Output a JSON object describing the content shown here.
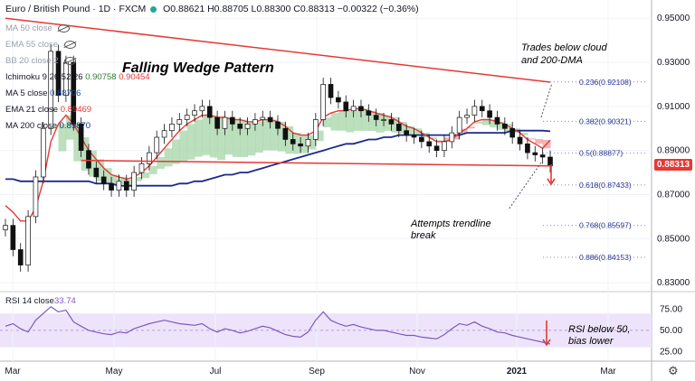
{
  "header": {
    "symbol": "Euro / British Pound · 1D · FXCM",
    "ohlc": "O0.88621 H0.88705 L0.88300 C0.88313 −0.00322 (−0.36%)"
  },
  "indicators": [
    {
      "label": "MA 50 close",
      "value": "",
      "visible": false
    },
    {
      "label": "EMA 55 close",
      "value": "",
      "visible": false
    },
    {
      "label": "BB 20 close 2",
      "value": "",
      "visible": false
    },
    {
      "label": "Ichimoku 9 26 52 26",
      "value": "0.90758",
      "value2": "0.90454",
      "visible": true
    },
    {
      "label": "MA 5 close",
      "value": "0.88706",
      "visible": true,
      "color": "#1e4fa8"
    },
    {
      "label": "EMA 21 close",
      "value": "0.89469",
      "visible": true,
      "color": "#e53935"
    },
    {
      "label": "MA 200 close",
      "value": "0.89870",
      "visible": true,
      "color": "#0d2a6b"
    }
  ],
  "colors": {
    "up": "#26a69a",
    "down": "#ef5350",
    "candle": "#111111",
    "ema21": "#e53935",
    "ma200": "#1a2a8c",
    "trend": "#e53935",
    "rsi": "#7e57c2",
    "rsi_band": "#ede4fb",
    "cloud_bull": "#a5d6a7",
    "cloud_bear": "#ef9a9a"
  },
  "annotations": {
    "title": "Falling Wedge Pattern",
    "cloud_note": "Trades below cloud and 200-DMA",
    "trend_note": "Attempts trendline break",
    "rsi_note": "RSI below 50, bias lower"
  },
  "current_price": "0.88313",
  "chart_data": [
    {
      "type": "candlestick",
      "title": "Euro / British Pound · 1D · FXCM",
      "x_tick_labels": [
        "Mar",
        "May",
        "Jul",
        "Sep",
        "Nov",
        "2021",
        "Mar"
      ],
      "y_tick_labels": [
        "0.95000",
        "0.93000",
        "0.91000",
        "0.89000",
        "0.87000",
        "0.85000",
        "0.83000"
      ],
      "ylim": [
        0.828,
        0.955
      ],
      "series": [
        {
          "name": "Close",
          "values": [
            0.856,
            0.845,
            0.838,
            0.86,
            0.878,
            0.9,
            0.935,
            0.915,
            0.93,
            0.902,
            0.89,
            0.882,
            0.878,
            0.875,
            0.872,
            0.876,
            0.872,
            0.88,
            0.884,
            0.889,
            0.896,
            0.899,
            0.902,
            0.904,
            0.906,
            0.908,
            0.91,
            0.905,
            0.9,
            0.905,
            0.902,
            0.9,
            0.902,
            0.904,
            0.905,
            0.903,
            0.9,
            0.895,
            0.893,
            0.892,
            0.895,
            0.904,
            0.92,
            0.914,
            0.912,
            0.908,
            0.91,
            0.908,
            0.906,
            0.904,
            0.904,
            0.902,
            0.899,
            0.897,
            0.896,
            0.894,
            0.892,
            0.89,
            0.894,
            0.898,
            0.905,
            0.906,
            0.91,
            0.908,
            0.905,
            0.902,
            0.9,
            0.896,
            0.893,
            0.889,
            0.888,
            0.887,
            0.883
          ]
        },
        {
          "name": "EMA 21",
          "values": [
            0.865,
            0.862,
            0.858,
            0.858,
            0.864,
            0.876,
            0.894,
            0.902,
            0.906,
            0.902,
            0.896,
            0.89,
            0.886,
            0.882,
            0.879,
            0.878,
            0.877,
            0.878,
            0.88,
            0.883,
            0.887,
            0.891,
            0.895,
            0.899,
            0.902,
            0.904,
            0.906,
            0.906,
            0.905,
            0.905,
            0.904,
            0.904,
            0.903,
            0.903,
            0.904,
            0.904,
            0.903,
            0.901,
            0.898,
            0.897,
            0.897,
            0.899,
            0.905,
            0.907,
            0.908,
            0.908,
            0.909,
            0.909,
            0.908,
            0.907,
            0.906,
            0.905,
            0.903,
            0.901,
            0.9,
            0.898,
            0.896,
            0.894,
            0.894,
            0.895,
            0.898,
            0.9,
            0.903,
            0.904,
            0.904,
            0.903,
            0.902,
            0.9,
            0.898,
            0.895,
            0.893,
            0.891,
            0.8947
          ]
        },
        {
          "name": "MA 200",
          "values": [
            0.877,
            0.877,
            0.876,
            0.876,
            0.876,
            0.876,
            0.876,
            0.876,
            0.876,
            0.876,
            0.876,
            0.876,
            0.875,
            0.875,
            0.875,
            0.874,
            0.874,
            0.874,
            0.874,
            0.874,
            0.874,
            0.874,
            0.874,
            0.875,
            0.875,
            0.876,
            0.876,
            0.877,
            0.878,
            0.879,
            0.879,
            0.88,
            0.88,
            0.881,
            0.882,
            0.883,
            0.884,
            0.885,
            0.886,
            0.887,
            0.888,
            0.889,
            0.89,
            0.891,
            0.892,
            0.893,
            0.893,
            0.894,
            0.895,
            0.895,
            0.896,
            0.896,
            0.897,
            0.897,
            0.897,
            0.897,
            0.897,
            0.897,
            0.897,
            0.897,
            0.897,
            0.898,
            0.898,
            0.898,
            0.898,
            0.898,
            0.898,
            0.899,
            0.899,
            0.899,
            0.899,
            0.899,
            0.8987
          ]
        }
      ],
      "fib_levels": [
        {
          "label": "0.236(0.92108)",
          "price": 0.92108
        },
        {
          "label": "0.382(0.90321)",
          "price": 0.90321
        },
        {
          "label": "0.5(0.88877)",
          "price": 0.88877
        },
        {
          "label": "0.618(0.87433)",
          "price": 0.87433
        },
        {
          "label": "0.768(0.85597)",
          "price": 0.85597
        },
        {
          "label": "0.886(0.84153)",
          "price": 0.84153
        }
      ],
      "trendlines": [
        {
          "name": "upper wedge",
          "from": [
            0,
            0.95
          ],
          "to": [
            72,
            0.921
          ]
        },
        {
          "name": "support",
          "from": [
            10,
            0.8855
          ],
          "to": [
            72,
            0.883
          ]
        }
      ]
    },
    {
      "type": "line",
      "title": "RSI 14 close",
      "value_label": "33.74",
      "y_tick_labels": [
        "75.00",
        "50.00",
        "25.00"
      ],
      "ylim": [
        20,
        82
      ],
      "band": [
        30,
        70
      ],
      "values": [
        55,
        58,
        52,
        48,
        62,
        70,
        78,
        72,
        74,
        60,
        55,
        50,
        48,
        46,
        45,
        48,
        47,
        52,
        55,
        58,
        60,
        62,
        60,
        58,
        57,
        56,
        58,
        52,
        48,
        52,
        50,
        47,
        49,
        52,
        55,
        53,
        49,
        45,
        43,
        42,
        48,
        62,
        72,
        62,
        58,
        55,
        57,
        54,
        52,
        50,
        50,
        48,
        46,
        44,
        44,
        42,
        41,
        40,
        45,
        52,
        58,
        56,
        60,
        55,
        52,
        48,
        47,
        44,
        42,
        40,
        38,
        36,
        33.74
      ]
    }
  ]
}
